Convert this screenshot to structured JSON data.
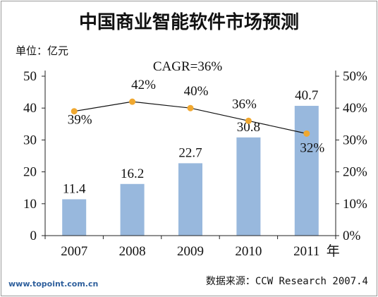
{
  "chart_data": {
    "type": "bar",
    "title": "中国商业智能软件市场预测",
    "unit_label": "单位：亿元",
    "annotation": "CAGR=36%",
    "categories": [
      "2007",
      "2008",
      "2009",
      "2010",
      "2011"
    ],
    "x_suffix": "年",
    "series": [
      {
        "values": [
          11.4,
          16.2,
          22.7,
          30.8,
          40.7
        ],
        "value_labels": [
          "11.4",
          "16.2",
          "22.7",
          "30.8",
          "40.7"
        ],
        "color": "#98b8dd",
        "axis": "left"
      },
      {
        "type": "line",
        "values": [
          39,
          42,
          40,
          36,
          32
        ],
        "value_labels": [
          "39%",
          "42%",
          "40%",
          "36%",
          "32%"
        ],
        "color": "#f0a830",
        "line_color": "#111111",
        "axis": "right"
      }
    ],
    "ylim": [
      0,
      50
    ],
    "yticks": [
      "0",
      "10",
      "20",
      "30",
      "40",
      "50"
    ],
    "y2lim": [
      0,
      50
    ],
    "y2ticks": [
      "0%",
      "10%",
      "20%",
      "30%",
      "40%",
      "50%"
    ],
    "grid": false
  },
  "source_text": "数据来源：CCW Research 2007.4",
  "watermark": "www.topoint.com.cn"
}
